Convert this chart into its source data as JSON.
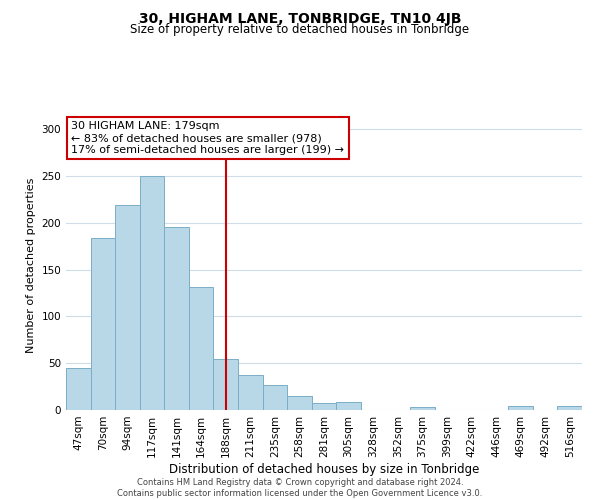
{
  "title": "30, HIGHAM LANE, TONBRIDGE, TN10 4JB",
  "subtitle": "Size of property relative to detached houses in Tonbridge",
  "xlabel": "Distribution of detached houses by size in Tonbridge",
  "ylabel": "Number of detached properties",
  "bar_labels": [
    "47sqm",
    "70sqm",
    "94sqm",
    "117sqm",
    "141sqm",
    "164sqm",
    "188sqm",
    "211sqm",
    "235sqm",
    "258sqm",
    "281sqm",
    "305sqm",
    "328sqm",
    "352sqm",
    "375sqm",
    "399sqm",
    "422sqm",
    "446sqm",
    "469sqm",
    "492sqm",
    "516sqm"
  ],
  "bar_values": [
    45,
    184,
    219,
    250,
    196,
    131,
    54,
    37,
    27,
    15,
    8,
    9,
    0,
    0,
    3,
    0,
    0,
    0,
    4,
    0,
    4
  ],
  "bar_color": "#b8d8e8",
  "bar_edge_color": "#7aaec8",
  "property_line_x": 6.0,
  "property_line_label": "30 HIGHAM LANE: 179sqm",
  "annotation_line1": "← 83% of detached houses are smaller (978)",
  "annotation_line2": "17% of semi-detached houses are larger (199) →",
  "vline_color": "#cc0000",
  "annotation_box_edge": "#cc0000",
  "footer_line1": "Contains HM Land Registry data © Crown copyright and database right 2024.",
  "footer_line2": "Contains public sector information licensed under the Open Government Licence v3.0.",
  "ylim": [
    0,
    310
  ],
  "background_color": "#ffffff",
  "grid_color": "#d0dce8",
  "title_fontsize": 10,
  "subtitle_fontsize": 8.5,
  "ylabel_fontsize": 8,
  "xlabel_fontsize": 8.5,
  "tick_fontsize": 7.5,
  "annotation_fontsize": 8,
  "footer_fontsize": 6
}
